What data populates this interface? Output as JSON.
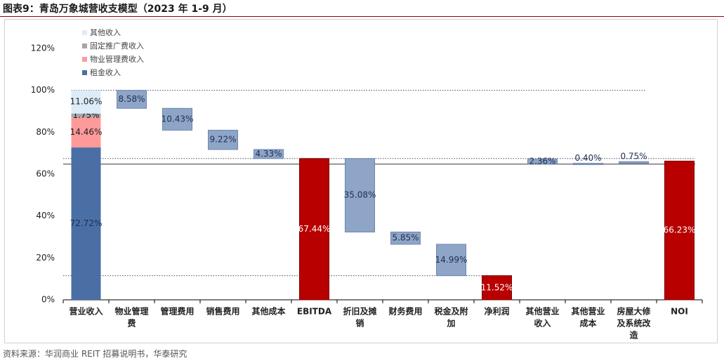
{
  "title": "图表9：青岛万象城营收支模型（2023 年 1-9 月）",
  "source": "资料来源：华润商业 REIT 招募说明书，华泰研究",
  "colors": {
    "rent": "#4a6fa5",
    "property_fee": "#ff9a9a",
    "promo_fee": "#a6a6a6",
    "other_income": "#dcecf9",
    "cost_bar": "#8ea5c8",
    "cost_border": "#6d86ad",
    "highlight": "#b80000"
  },
  "chart_data": {
    "type": "bar",
    "subtype": "waterfall",
    "title": "青岛万象城营收支模型（2023 年 1-9 月）",
    "ylim": [
      0,
      120
    ],
    "yticks": [
      0,
      20,
      40,
      60,
      80,
      100,
      120
    ],
    "ytick_labels": [
      "0%",
      "20%",
      "40%",
      "60%",
      "80%",
      "100%",
      "120%"
    ],
    "legend": {
      "position": "top-left",
      "items": [
        {
          "name": "其他收入",
          "color_key": "other_income"
        },
        {
          "name": "固定推广费收入",
          "color_key": "promo_fee"
        },
        {
          "name": "物业管理费收入",
          "color_key": "property_fee"
        },
        {
          "name": "租金收入",
          "color_key": "rent"
        }
      ]
    },
    "revenue_stack": {
      "category": "营业收入",
      "components": [
        {
          "name": "租金收入",
          "value": 72.72,
          "label": "72.72%",
          "color_key": "rent"
        },
        {
          "name": "物业管理费收入",
          "value": 14.46,
          "label": "14.46%",
          "color_key": "property_fee"
        },
        {
          "name": "固定推广费收入",
          "value": 1.75,
          "label": "1.75%",
          "color_key": "promo_fee"
        },
        {
          "name": "其他收入",
          "value": 11.06,
          "label": "11.06%",
          "color_key": "other_income"
        }
      ]
    },
    "bars": [
      {
        "category": "物业管理费",
        "low": 91.41,
        "high": 99.99,
        "label": "8.58%",
        "kind": "cost"
      },
      {
        "category": "管理费用",
        "low": 80.98,
        "high": 91.41,
        "label": "10.43%",
        "kind": "cost"
      },
      {
        "category": "销售费用",
        "low": 71.76,
        "high": 80.98,
        "label": "9.22%",
        "kind": "cost"
      },
      {
        "category": "其他成本",
        "low": 67.44,
        "high": 71.76,
        "label": "4.33%",
        "kind": "cost"
      },
      {
        "category": "EBITDA",
        "low": 0,
        "high": 67.44,
        "label": "67.44%",
        "kind": "total"
      },
      {
        "category": "折旧及摊销",
        "low": 32.36,
        "high": 67.44,
        "label": "35.08%",
        "kind": "cost"
      },
      {
        "category": "财务费用",
        "low": 26.51,
        "high": 32.36,
        "label": "5.85%",
        "kind": "cost"
      },
      {
        "category": "税金及附加",
        "low": 11.52,
        "high": 26.51,
        "label": "14.99%",
        "kind": "cost"
      },
      {
        "category": "净利润",
        "low": 0,
        "high": 11.52,
        "label": "11.52%",
        "kind": "total"
      },
      {
        "category": "其他营业收入",
        "low": 64.79,
        "high": 67.15,
        "label": "2.36%",
        "kind": "cost",
        "label_pos": "center"
      },
      {
        "category": "其他营业成本",
        "low": 64.79,
        "high": 65.19,
        "label": "0.40%",
        "kind": "cost",
        "label_pos": "above"
      },
      {
        "category": "房屋大修及系统改造",
        "low": 65.23,
        "high": 65.98,
        "label": "0.75%",
        "kind": "cost",
        "label_pos": "above"
      },
      {
        "category": "NOI",
        "low": 0,
        "high": 66.23,
        "label": "66.23%",
        "kind": "total"
      }
    ],
    "reference_lines": [
      {
        "value": 100,
        "style": "dotted",
        "range": "revenue-to-costs"
      },
      {
        "value": 67.44,
        "style": "dotted",
        "range": "full"
      },
      {
        "value": 64.79,
        "style": "solid",
        "range": "full"
      },
      {
        "value": 11.52,
        "style": "dotted",
        "range": "revenue-to-net-profit"
      }
    ],
    "x_labels": [
      [
        "营业收入"
      ],
      [
        "物业管理",
        "费"
      ],
      [
        "管理费用"
      ],
      [
        "销售费用"
      ],
      [
        "其他成本"
      ],
      [
        "EBITDA"
      ],
      [
        "折旧及摊",
        "销"
      ],
      [
        "财务费用"
      ],
      [
        "税金及附",
        "加"
      ],
      [
        "净利润"
      ],
      [
        "其他营业",
        "收入"
      ],
      [
        "其他营业",
        "成本"
      ],
      [
        "房屋大修",
        "及系统改",
        "造"
      ],
      [
        "NOI"
      ]
    ]
  }
}
